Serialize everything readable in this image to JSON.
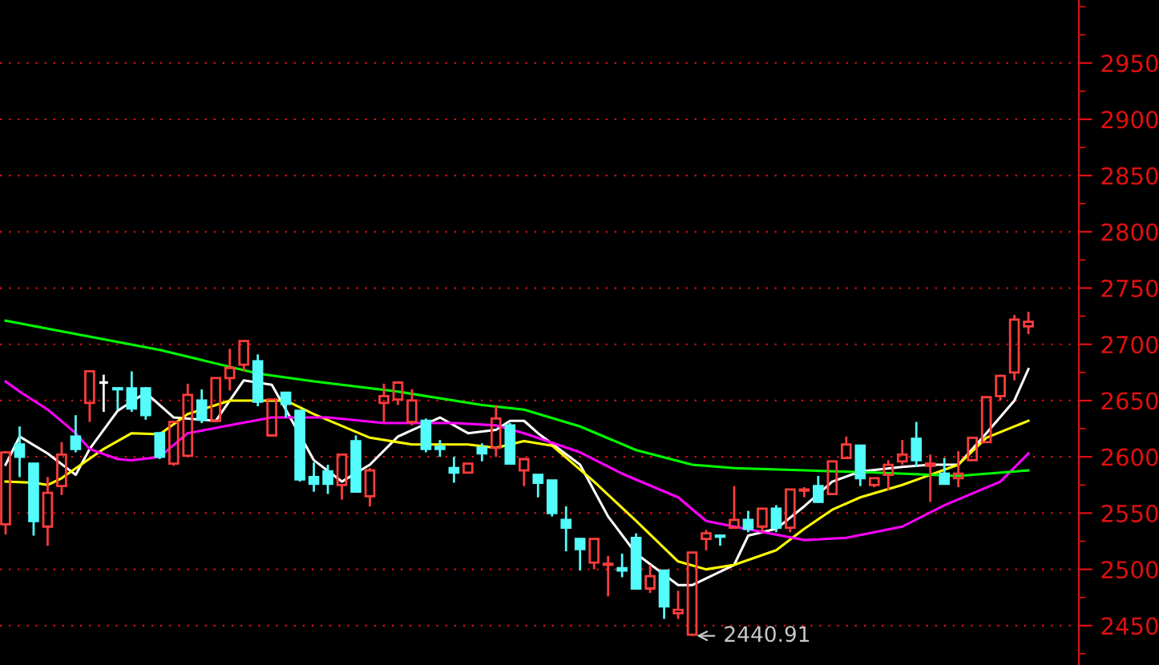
{
  "chart_data": {
    "type": "candlestick",
    "categories": [
      null,
      null,
      null,
      null,
      null,
      null,
      null,
      null,
      null,
      null,
      null,
      null,
      null,
      null,
      null,
      null,
      null,
      null,
      null,
      null,
      null,
      null,
      null,
      null,
      null,
      null,
      null,
      null,
      null,
      null,
      null,
      null,
      null,
      null,
      null,
      null,
      null,
      null,
      null,
      null,
      null,
      null,
      null,
      null,
      null,
      null,
      null,
      null,
      null,
      null,
      null,
      null,
      null,
      null,
      null,
      null,
      null,
      null,
      null,
      null,
      null,
      null,
      null,
      null,
      null,
      null,
      null,
      null,
      null,
      null,
      null,
      null,
      null,
      null
    ],
    "ohlc": [
      [
        2540,
        2605,
        2531,
        2604
      ],
      [
        2611,
        2627,
        2582,
        2600
      ],
      [
        2594,
        2594,
        2530,
        2543
      ],
      [
        2538,
        2582,
        2521,
        2568
      ],
      [
        2574,
        2613,
        2566,
        2602
      ],
      [
        2618,
        2637,
        2604,
        2607
      ],
      [
        2648,
        2676,
        2631,
        2676
      ],
      [
        2666,
        2673,
        2640,
        2666
      ],
      [
        2661,
        2661,
        2642,
        2660
      ],
      [
        2661,
        2676,
        2640,
        2643
      ],
      [
        2661,
        2662,
        2633,
        2637
      ],
      [
        2621,
        2621,
        2598,
        2600
      ],
      [
        2594,
        2631,
        2592,
        2631
      ],
      [
        2601,
        2665,
        2600,
        2655
      ],
      [
        2650,
        2660,
        2630,
        2633
      ],
      [
        2632,
        2670,
        2632,
        2670
      ],
      [
        2670,
        2696,
        2659,
        2679
      ],
      [
        2682,
        2703,
        2676,
        2703
      ],
      [
        2685,
        2691,
        2645,
        2649
      ],
      [
        2619,
        2651,
        2619,
        2651
      ],
      [
        2657,
        2657,
        2635,
        2647
      ],
      [
        2641,
        2641,
        2578,
        2580
      ],
      [
        2582,
        2595,
        2569,
        2576
      ],
      [
        2587,
        2593,
        2567,
        2576
      ],
      [
        2575,
        2602,
        2562,
        2602
      ],
      [
        2614,
        2619,
        2569,
        2569
      ],
      [
        2565,
        2590,
        2556,
        2588
      ],
      [
        2648,
        2665,
        2631,
        2654
      ],
      [
        2651,
        2666,
        2646,
        2666
      ],
      [
        2631,
        2660,
        2628,
        2650
      ],
      [
        2632,
        2634,
        2604,
        2607
      ],
      [
        2609,
        2615,
        2600,
        2607
      ],
      [
        2590,
        2600,
        2577,
        2586
      ],
      [
        2586,
        2594,
        2586,
        2594
      ],
      [
        2608,
        2612,
        2596,
        2603
      ],
      [
        2608,
        2646,
        2600,
        2634
      ],
      [
        2628,
        2630,
        2594,
        2594
      ],
      [
        2588,
        2598,
        2574,
        2598
      ],
      [
        2584,
        2584,
        2564,
        2577
      ],
      [
        2579,
        2579,
        2547,
        2550
      ],
      [
        2544,
        2556,
        2516,
        2537
      ],
      [
        2527,
        2527,
        2499,
        2518
      ],
      [
        2506,
        2527,
        2500,
        2527
      ],
      [
        2504,
        2512,
        2476,
        2505
      ],
      [
        2501,
        2514,
        2493,
        2499
      ],
      [
        2528,
        2532,
        2483,
        2483
      ],
      [
        2483,
        2504,
        2479,
        2494
      ],
      [
        2499,
        2499,
        2456,
        2467
      ],
      [
        2461,
        2481,
        2456,
        2464
      ],
      [
        2442,
        2515,
        2440.91,
        2515
      ],
      [
        2527,
        2535,
        2517,
        2532
      ],
      [
        2530,
        2531,
        2521,
        2529
      ],
      [
        2537,
        2574,
        2537,
        2544
      ],
      [
        2544,
        2552,
        2533,
        2536
      ],
      [
        2538,
        2554,
        2533,
        2554
      ],
      [
        2554,
        2557,
        2533,
        2537
      ],
      [
        2537,
        2571,
        2533,
        2571
      ],
      [
        2570,
        2573,
        2564,
        2571
      ],
      [
        2574,
        2583,
        2559,
        2560
      ],
      [
        2567,
        2596,
        2566,
        2596
      ],
      [
        2599,
        2618,
        2599,
        2611
      ],
      [
        2610,
        2610,
        2574,
        2581
      ],
      [
        2575,
        2581,
        2573,
        2581
      ],
      [
        2584,
        2597,
        2570,
        2593
      ],
      [
        2596,
        2615,
        2593,
        2602
      ],
      [
        2616,
        2631,
        2591,
        2597
      ],
      [
        2592,
        2602,
        2560,
        2594
      ],
      [
        2585,
        2599,
        2576,
        2576
      ],
      [
        2581,
        2605,
        2573,
        2585
      ],
      [
        2597,
        2617,
        2597,
        2617
      ],
      [
        2613,
        2653,
        2613,
        2653
      ],
      [
        2654,
        2673,
        2650,
        2672
      ],
      [
        2675,
        2726,
        2668,
        2722
      ],
      [
        2716,
        2729,
        2709,
        2720
      ]
    ],
    "colors": [
      "#ff3c3c",
      "#54fcfc",
      "#54fcfc",
      "#ff3c3c",
      "#ff3c3c",
      "#54fcfc",
      "#ff3c3c",
      "#ffffff",
      "#54fcfc",
      "#54fcfc",
      "#54fcfc",
      "#54fcfc",
      "#ff3c3c",
      "#ff3c3c",
      "#54fcfc",
      "#ff3c3c",
      "#ff3c3c",
      "#ff3c3c",
      "#54fcfc",
      "#ff3c3c",
      "#54fcfc",
      "#54fcfc",
      "#54fcfc",
      "#54fcfc",
      "#ff3c3c",
      "#54fcfc",
      "#ff3c3c",
      "#ff3c3c",
      "#ff3c3c",
      "#ff3c3c",
      "#54fcfc",
      "#54fcfc",
      "#54fcfc",
      "#ff3c3c",
      "#54fcfc",
      "#ff3c3c",
      "#54fcfc",
      "#ff3c3c",
      "#54fcfc",
      "#54fcfc",
      "#54fcfc",
      "#54fcfc",
      "#ff3c3c",
      "#ff3c3c",
      "#54fcfc",
      "#54fcfc",
      "#ff3c3c",
      "#54fcfc",
      "#ff3c3c",
      "#ff3c3c",
      "#ff3c3c",
      "#54fcfc",
      "#ff3c3c",
      "#54fcfc",
      "#ff3c3c",
      "#54fcfc",
      "#ff3c3c",
      "#ff3c3c",
      "#54fcfc",
      "#ff3c3c",
      "#ff3c3c",
      "#54fcfc",
      "#ff3c3c",
      "#ff3c3c",
      "#ff3c3c",
      "#54fcfc",
      "#ff3c3c",
      "#54fcfc",
      "#ff3c3c",
      "#ff3c3c",
      "#ff3c3c",
      "#ff3c3c",
      "#ff3c3c",
      "#ff3c3c"
    ],
    "series": [
      {
        "type": "line",
        "color": "#ffffff",
        "values": [
          2593,
          2618,
          null,
          2603,
          null,
          2584,
          2607,
          null,
          2641,
          null,
          2657,
          null,
          2635,
          null,
          null,
          2632,
          null,
          2668,
          null,
          2664,
          2642,
          null,
          2597,
          null,
          2578,
          null,
          2593,
          null,
          2618,
          null,
          null,
          2635,
          null,
          2621,
          null,
          2624,
          2632,
          2632,
          2621,
          null,
          null,
          2593,
          null,
          2547,
          null,
          2514,
          null,
          null,
          2486,
          2486,
          null,
          null,
          2504,
          2530,
          null,
          2536,
          null,
          2556,
          null,
          2578,
          null,
          2587,
          null,
          null,
          2591,
          null,
          2593,
          null,
          2593,
          null,
          2621,
          null,
          2650,
          2678
        ]
      },
      {
        "type": "line",
        "color": "#ffff00",
        "values": [
          2578,
          null,
          2577,
          2575,
          2581,
          null,
          null,
          2607,
          null,
          2621,
          null,
          2620,
          null,
          2638,
          null,
          null,
          2650,
          null,
          2650,
          null,
          2650,
          null,
          2638,
          null,
          null,
          null,
          2617,
          null,
          null,
          2611,
          null,
          null,
          null,
          2611,
          null,
          2608,
          null,
          2614,
          null,
          2610,
          null,
          null,
          2578,
          null,
          null,
          2543,
          null,
          null,
          2507,
          null,
          2500,
          null,
          2504,
          null,
          null,
          2517,
          null,
          2536,
          null,
          2553,
          null,
          2564,
          null,
          null,
          2575,
          null,
          2584,
          null,
          2593,
          null,
          2617,
          null,
          null,
          2632
        ]
      },
      {
        "type": "line",
        "color": "#ff00ff",
        "values": [
          2667,
          2658,
          null,
          2642,
          null,
          2621,
          2607,
          null,
          2598,
          2597,
          null,
          2600,
          null,
          2621,
          null,
          null,
          2628,
          null,
          null,
          2635,
          null,
          null,
          null,
          2635,
          null,
          null,
          null,
          2630,
          null,
          null,
          null,
          null,
          2630,
          null,
          null,
          2628,
          null,
          2621,
          null,
          null,
          null,
          2604,
          null,
          null,
          2585,
          null,
          null,
          null,
          2564,
          null,
          2543,
          null,
          2538,
          null,
          null,
          null,
          null,
          2526,
          null,
          null,
          2528,
          null,
          null,
          null,
          2538,
          null,
          null,
          2557,
          null,
          null,
          null,
          2578,
          null,
          2603
        ]
      },
      {
        "type": "line",
        "color": "#00ff00",
        "values": [
          2721,
          null,
          null,
          null,
          null,
          null,
          null,
          null,
          null,
          null,
          null,
          2695,
          null,
          null,
          null,
          null,
          null,
          null,
          2674,
          null,
          null,
          null,
          2667,
          null,
          null,
          null,
          null,
          null,
          2658,
          null,
          null,
          null,
          null,
          null,
          2646,
          null,
          null,
          2642,
          null,
          null,
          null,
          2627,
          null,
          null,
          null,
          2606,
          null,
          null,
          null,
          2593,
          null,
          null,
          2590,
          null,
          null,
          null,
          null,
          2588,
          null,
          null,
          null,
          null,
          2586,
          null,
          null,
          null,
          null,
          null,
          2583,
          null,
          null,
          null,
          null,
          2588
        ]
      }
    ],
    "ylim": [
      2415,
      3006
    ],
    "yticks": [
      2450,
      2500,
      2550,
      2600,
      2650,
      2700,
      2750,
      2800,
      2850,
      2900,
      2950
    ],
    "grid": "y",
    "tick_labels": "y",
    "annotations": [
      "2440.91"
    ]
  }
}
